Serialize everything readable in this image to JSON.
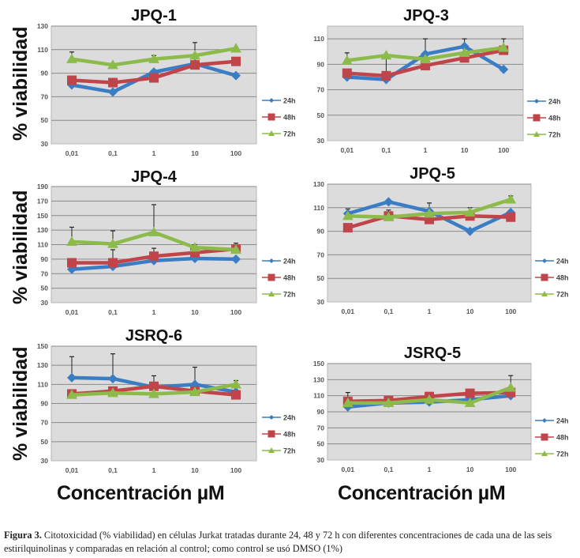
{
  "figure": {
    "y_axis_label": "% viabilidad",
    "x_axis_label": "Concentración µM",
    "colors": {
      "24h": "#3b7dc4",
      "48h": "#c0454a",
      "72h": "#8cbb4c",
      "plot_bg": "#dcdcdc",
      "grid": "#8a8a8a",
      "error_bar": "#222222"
    }
  },
  "caption": {
    "label": "Figura 3.",
    "text": " Citotoxicidad (% viabilidad) en células Jurkat tratadas durante 24, 48 y 72 h con diferentes concentraciones de cada una de las seis estirilquinolinas y comparadas en relación al control; como control se usó DMSO (1%)"
  },
  "chart_data": [
    {
      "type": "line",
      "title": "JPQ-1",
      "xlabel": "",
      "ylabel": "% viabilidad",
      "categories": [
        "0,01",
        "0,1",
        "1",
        "10",
        "100"
      ],
      "ylim": [
        30,
        130
      ],
      "yticks": [
        30,
        50,
        70,
        90,
        110,
        130
      ],
      "grid": true,
      "legend": "right",
      "series": [
        {
          "name": "24h",
          "marker": "diamond",
          "values": [
            80,
            74,
            91,
            98,
            88
          ],
          "error": [
            0,
            0,
            0,
            0,
            0
          ]
        },
        {
          "name": "48h",
          "marker": "square",
          "values": [
            84,
            82,
            86,
            97,
            100
          ],
          "error": [
            0,
            0,
            0,
            0,
            0
          ]
        },
        {
          "name": "72h",
          "marker": "triangle",
          "values": [
            102,
            97,
            102,
            105,
            111
          ],
          "error": [
            6,
            1,
            3,
            11,
            0
          ]
        }
      ]
    },
    {
      "type": "line",
      "title": "JPQ-3",
      "xlabel": "",
      "ylabel": "",
      "categories": [
        "0,01",
        "0,1",
        "1",
        "10",
        "100"
      ],
      "ylim": [
        30,
        120
      ],
      "yticks": [
        30,
        50,
        70,
        90,
        110
      ],
      "grid": true,
      "legend": "right",
      "series": [
        {
          "name": "24h",
          "marker": "diamond",
          "values": [
            80,
            78,
            98,
            104,
            86
          ],
          "error": [
            0,
            0,
            12,
            6,
            0
          ]
        },
        {
          "name": "48h",
          "marker": "square",
          "values": [
            83,
            81,
            89,
            95,
            101
          ],
          "error": [
            0,
            0,
            0,
            0,
            9
          ]
        },
        {
          "name": "72h",
          "marker": "triangle",
          "values": [
            93,
            97,
            94,
            99,
            103
          ],
          "error": [
            6,
            -16,
            0,
            0,
            0
          ]
        }
      ]
    },
    {
      "type": "line",
      "title": "JPQ-4",
      "xlabel": "",
      "ylabel": "% viabilidad",
      "categories": [
        "0,01",
        "0,1",
        "1",
        "10",
        "100"
      ],
      "ylim": [
        30,
        190
      ],
      "yticks": [
        30,
        50,
        70,
        90,
        110,
        130,
        150,
        170,
        190
      ],
      "grid": true,
      "legend": "right",
      "series": [
        {
          "name": "24h",
          "marker": "diamond",
          "values": [
            76,
            80,
            88,
            91,
            90
          ],
          "error": [
            0,
            0,
            0,
            0,
            0
          ]
        },
        {
          "name": "48h",
          "marker": "square",
          "values": [
            85,
            85,
            94,
            99,
            104
          ],
          "error": [
            0,
            18,
            11,
            0,
            8
          ]
        },
        {
          "name": "72h",
          "marker": "triangle",
          "values": [
            114,
            111,
            127,
            106,
            103
          ],
          "error": [
            20,
            18,
            38,
            4,
            0
          ]
        }
      ]
    },
    {
      "type": "line",
      "title": "JPQ-5",
      "xlabel": "",
      "ylabel": "",
      "categories": [
        "0,01",
        "0,1",
        "1",
        "10",
        "100"
      ],
      "ylim": [
        30,
        130
      ],
      "yticks": [
        30,
        50,
        70,
        90,
        110,
        130
      ],
      "grid": true,
      "legend": "right",
      "series": [
        {
          "name": "24h",
          "marker": "diamond",
          "values": [
            105,
            115,
            107,
            90,
            106
          ],
          "error": [
            4,
            0,
            7,
            0,
            0
          ]
        },
        {
          "name": "48h",
          "marker": "square",
          "values": [
            93,
            103,
            100,
            103,
            102
          ],
          "error": [
            0,
            5,
            0,
            0,
            0
          ]
        },
        {
          "name": "72h",
          "marker": "triangle",
          "values": [
            103,
            102,
            105,
            106,
            117
          ],
          "error": [
            0,
            0,
            0,
            4,
            3
          ]
        }
      ]
    },
    {
      "type": "line",
      "title": "JSRQ-6",
      "xlabel": "Concentración µM",
      "ylabel": "% viabilidad",
      "categories": [
        "0,01",
        "0,1",
        "1",
        "10",
        "100"
      ],
      "ylim": [
        30,
        150
      ],
      "yticks": [
        30,
        50,
        70,
        90,
        110,
        130,
        150
      ],
      "grid": true,
      "legend": "right",
      "series": [
        {
          "name": "24h",
          "marker": "diamond",
          "values": [
            117,
            116,
            107,
            110,
            102
          ],
          "error": [
            22,
            26,
            0,
            18,
            0
          ]
        },
        {
          "name": "48h",
          "marker": "square",
          "values": [
            100,
            103,
            108,
            103,
            99
          ],
          "error": [
            4,
            0,
            11,
            0,
            0
          ]
        },
        {
          "name": "72h",
          "marker": "triangle",
          "values": [
            99,
            101,
            100,
            102,
            110
          ],
          "error": [
            0,
            0,
            0,
            0,
            4
          ]
        }
      ]
    },
    {
      "type": "line",
      "title": "JSRQ-5",
      "xlabel": "Concentración µM",
      "ylabel": "",
      "categories": [
        "0,01",
        "0,1",
        "1",
        "10",
        "100"
      ],
      "ylim": [
        30,
        150
      ],
      "yticks": [
        30,
        50,
        70,
        90,
        110,
        130,
        150
      ],
      "grid": true,
      "legend": "right",
      "series": [
        {
          "name": "24h",
          "marker": "diamond",
          "values": [
            96,
            101,
            102,
            105,
            110
          ],
          "error": [
            0,
            0,
            0,
            0,
            0
          ]
        },
        {
          "name": "48h",
          "marker": "square",
          "values": [
            103,
            104,
            109,
            113,
            114
          ],
          "error": [
            11,
            0,
            0,
            0,
            0
          ]
        },
        {
          "name": "72h",
          "marker": "triangle",
          "values": [
            101,
            101,
            105,
            101,
            120
          ],
          "error": [
            0,
            0,
            0,
            0,
            15
          ]
        }
      ]
    }
  ]
}
